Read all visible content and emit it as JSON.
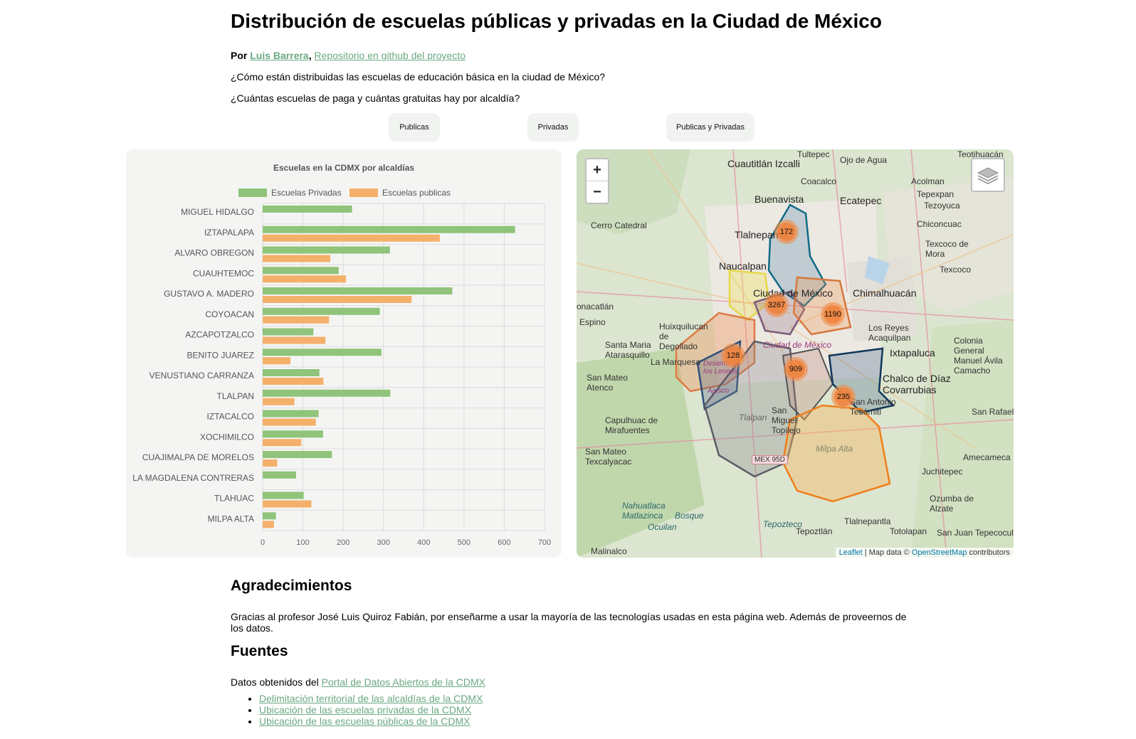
{
  "page": {
    "title": "Distribución de escuelas públicas y privadas en la Ciudad de México",
    "by_prefix": "Por",
    "author": "Luis Barrera",
    "separator": ",",
    "repo_link": "Repositorio en github del proyecto",
    "question1": "¿Cómo están distribuidas las escuelas de educación básica en la ciudad de México?",
    "question2": "¿Cuántas escuelas de paga y cuántas gratuitas hay por alcaldía?"
  },
  "buttons": {
    "publicas": "Publicas",
    "privadas": "Privadas",
    "ambas": "Publicas y Privadas"
  },
  "chart_data": {
    "type": "bar",
    "orientation": "horizontal",
    "title": "Escuelas en la CDMX por alcaldías",
    "categories": [
      "MIGUEL HIDALGO",
      "IZTAPALAPA",
      "ALVARO OBREGON",
      "CUAUHTEMOC",
      "GUSTAVO A. MADERO",
      "COYOACAN",
      "AZCAPOTZALCO",
      "BENITO JUAREZ",
      "VENUSTIANO CARRANZA",
      "TLALPAN",
      "IZTACALCO",
      "XOCHIMILCO",
      "CUAJIMALPA DE MORELOS",
      "LA MAGDALENA CONTRERAS",
      "TLAHUAC",
      "MILPA ALTA"
    ],
    "series": [
      {
        "name": "Escuelas Privadas",
        "color": "#8fc47a",
        "values": [
          222,
          627,
          316,
          189,
          471,
          291,
          126,
          295,
          141,
          317,
          139,
          150,
          172,
          83,
          102,
          33
        ]
      },
      {
        "name": "Escuelas publicas",
        "color": "#f4b06a",
        "values": [
          0,
          440,
          168,
          207,
          370,
          165,
          156,
          69,
          151,
          79,
          132,
          96,
          36,
          0,
          121,
          28
        ]
      }
    ],
    "xlim": [
      0,
      700
    ],
    "xticks": [
      "0",
      "100",
      "200",
      "300",
      "400",
      "500",
      "600",
      "700"
    ],
    "legend": "top",
    "grid": true
  },
  "map": {
    "zoom_in": "+",
    "zoom_out": "−",
    "attribution_leaflet": "Leaflet",
    "attribution_mid": "| Map data ©",
    "attribution_osm": "OpenStreetMap",
    "attribution_end": "contributors",
    "clusters": [
      "172",
      "3267",
      "1190",
      "128",
      "909",
      "235"
    ],
    "places": [
      "Tultepec",
      "Ojo de Agua",
      "Teotihuacán",
      "Cuautitlán Izcalli",
      "Coacalco",
      "Acolman",
      "Buenavista",
      "Ecatepec",
      "Tepexpan",
      "Tezoyuca",
      "Chiconcuac",
      "Cerro Catedral",
      "Tlalnepantla",
      "Texcoco de Mora",
      "Texcoco",
      "Naucalpan",
      "Ciudad de México",
      "Chimalhuacán",
      "onacatlán",
      "Espino",
      "Huixquilucan de Degollado",
      "Los Reyes Acaquilpan",
      "Santa Maria Atarasquillo",
      "Colonia General Manuel Ávila Camacho",
      "Ixtapaluca",
      "La Marquesa",
      "Ciudad de México",
      "San Mateo Atenco",
      "Chalco de Díaz Covarrubias",
      "San Antonio Tecómitl",
      "Capulhuac de Mirafuentes",
      "San Miguel Topilejo",
      "San Rafael",
      "San Mateo Texcalyacac",
      "Tlalpan",
      "Amecameca",
      "MEX 95D",
      "Milpa Alta",
      "Juchitepec",
      "Nahuatlaca Matlazinca",
      "Bosque",
      "Ocuilan",
      "Ozumba de Alzate",
      "Tepoztlán",
      "Tepozteco",
      "Tlalnepantla",
      "Totolapan",
      "San Juan Tepecoculco",
      "Malinalco",
      "Desierto de los Leones",
      "Ajusco"
    ]
  },
  "thanks": {
    "heading": "Agradecimientos",
    "text": "Gracias al profesor José Luis Quiroz Fabián, por enseñarme a usar la mayoría de las tecnologías usadas en esta página web. Además de proveernos de los datos."
  },
  "sources": {
    "heading": "Fuentes",
    "intro": "Datos obtenidos del",
    "portal_link": "Portal de Datos Abiertos de la CDMX",
    "items": [
      "Delimitación territorial de las alcaldías de la CDMX",
      "Ubicación de las escuelas privadas de la CDMX",
      "Ubicación de las escuelas públicas de la CDMX"
    ]
  }
}
